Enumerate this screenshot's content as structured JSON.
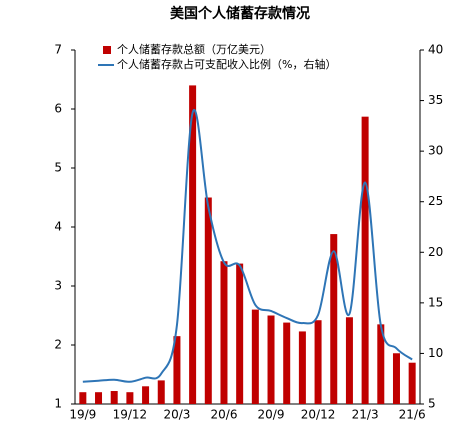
{
  "chart_data": {
    "type": "bar_line",
    "title": "美国个人储蓄存款情况",
    "categories": [
      "19/9",
      null,
      null,
      "19/12",
      null,
      null,
      "20/3",
      null,
      null,
      "20/6",
      null,
      null,
      "20/9",
      null,
      null,
      "20/12",
      null,
      null,
      "21/3",
      null,
      null,
      "21/6"
    ],
    "series": [
      {
        "name": "个人储蓄存款总额（万亿美元）",
        "type": "bar",
        "color": "#c00000",
        "values": [
          1.2,
          1.2,
          1.22,
          1.2,
          1.3,
          1.4,
          2.15,
          6.4,
          4.5,
          3.42,
          3.38,
          2.6,
          2.5,
          2.38,
          2.23,
          2.42,
          3.88,
          2.47,
          5.87,
          2.35,
          1.86,
          1.7
        ]
      },
      {
        "name": "个人储蓄存款占可支配收入比例（%，右轴）",
        "type": "line",
        "axis": "y2",
        "color": "#2e75b6",
        "values": [
          7.2,
          7.3,
          7.4,
          7.2,
          7.6,
          8.0,
          12.8,
          33.8,
          24.5,
          19.0,
          18.7,
          14.8,
          14.2,
          13.5,
          13.0,
          13.8,
          20.1,
          13.9,
          26.9,
          12.8,
          10.5,
          9.4
        ]
      }
    ],
    "ylim": [
      1,
      7
    ],
    "yticks": [
      1,
      2,
      3,
      4,
      5,
      6,
      7
    ],
    "y2lim": [
      5,
      40
    ],
    "y2ticks": [
      5,
      10,
      15,
      20,
      25,
      30,
      35,
      40
    ],
    "legend": "top"
  }
}
